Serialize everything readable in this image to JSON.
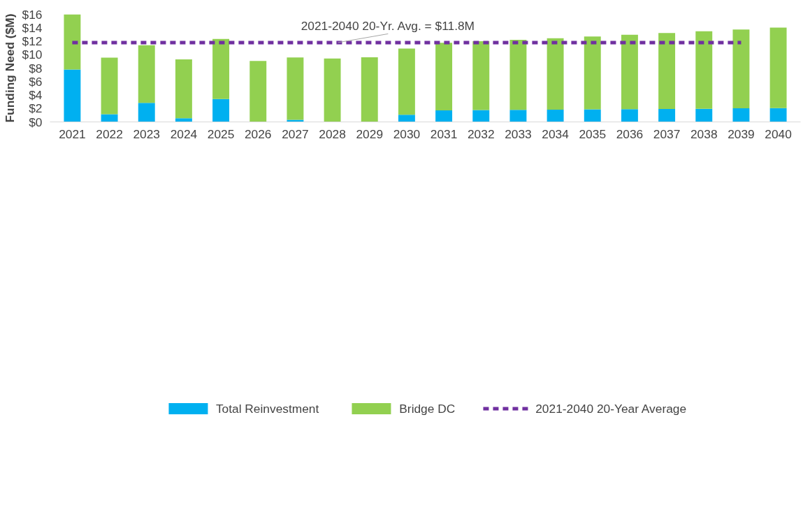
{
  "chart_data": {
    "type": "bar",
    "stacked": true,
    "ylabel": "Funding Need ($M)",
    "categories": [
      "2021",
      "2022",
      "2023",
      "2024",
      "2025",
      "2026",
      "2027",
      "2028",
      "2029",
      "2030",
      "2031",
      "2032",
      "2033",
      "2034",
      "2035",
      "2036",
      "2037",
      "2038",
      "2039",
      "2040"
    ],
    "series": [
      {
        "name": "Total Reinvestment",
        "color": "#00b0f0",
        "values": [
          7.8,
          1.14,
          2.82,
          0.54,
          3.41,
          0,
          0.31,
          0,
          0,
          1.06,
          1.71,
          1.76,
          1.78,
          1.81,
          1.86,
          1.89,
          1.91,
          1.96,
          2.02,
          2.04
        ]
      },
      {
        "name": "Bridge DC",
        "color": "#92d050",
        "values": [
          8.2,
          8.42,
          8.58,
          8.76,
          8.94,
          9.07,
          9.28,
          9.43,
          9.61,
          9.84,
          10.05,
          10.23,
          10.44,
          10.64,
          10.85,
          11.08,
          11.32,
          11.53,
          11.73,
          11.99
        ]
      },
      {
        "name": "2021-2040 20-Year Average",
        "type": "line",
        "line_style": "dashed",
        "color": "#7030a0",
        "values": [
          11.8,
          11.8,
          11.8,
          11.8,
          11.8,
          11.8,
          11.8,
          11.8,
          11.8,
          11.8,
          11.8,
          11.8,
          11.8,
          11.8,
          11.8,
          11.8,
          11.8,
          11.8,
          11.8,
          null
        ]
      }
    ],
    "ylim": [
      0,
      16
    ],
    "yticks": [
      {
        "value": 0,
        "label": "$0"
      },
      {
        "value": 2,
        "label": "$2"
      },
      {
        "value": 4,
        "label": "$4"
      },
      {
        "value": 6,
        "label": "$6"
      },
      {
        "value": 8,
        "label": "$8"
      },
      {
        "value": 10,
        "label": "$10"
      },
      {
        "value": 12,
        "label": "$12"
      },
      {
        "value": 14,
        "label": "$14"
      },
      {
        "value": 16,
        "label": "$16"
      }
    ],
    "annotations": [
      {
        "text": "2021-2040 20-Yr. Avg. = $11.8M",
        "x": "2028",
        "y": 11.8
      }
    ],
    "grid": false,
    "legend": "bottom"
  }
}
